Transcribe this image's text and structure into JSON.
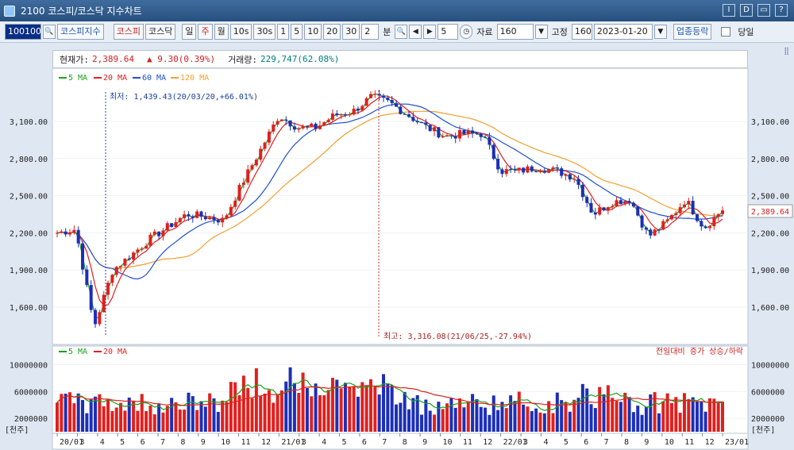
{
  "window": {
    "code": "2100",
    "title": "코스피/코스닥 지수차트",
    "buttons": [
      "I",
      "D",
      "▭",
      "?"
    ]
  },
  "toolbar": {
    "index_code": "100100",
    "index_name": "코스피지수",
    "market_kospi": "코스피",
    "market_kosdaq": "코스닥",
    "period_day": "일",
    "period_week": "주",
    "period_month": "월",
    "period_10s": "10s",
    "period_30s": "30s",
    "min_1": "1",
    "min_5": "5",
    "min_10": "10",
    "min_20": "20",
    "min_30": "30",
    "min_custom": "2",
    "min_label": "분",
    "step_value": "5",
    "data_label": "자료",
    "data_value": "160",
    "fixed_label": "고정",
    "fixed_value": "160",
    "date_value": "2023-01-20",
    "sector_button": "업종등락",
    "today_label": "당일"
  },
  "info": {
    "current_label": "현재가:",
    "current_value": "2,389.64",
    "change_value": "▲ 9.30(0.39%)",
    "volume_label": "거래량:",
    "volume_value": "229,747(62.08%)"
  },
  "legend": {
    "ma5": "5 MA",
    "ma20": "20 MA",
    "ma60": "60 MA",
    "ma120": "120 MA"
  },
  "vol_legend": {
    "ma5": "5 MA",
    "ma20": "20 MA",
    "note": "전일대비 증가 상승/하락"
  },
  "annotations": {
    "low": "최저: 1,439.43(20/03/20,+66.01%)",
    "high": "최고: 3,316.08(21/06/25,-27.94%)"
  },
  "price_axis": [
    "3,100.00",
    "2,800.00",
    "2,500.00",
    "2,200.00",
    "1,900.00",
    "1,600.00"
  ],
  "volume_axis": [
    "10000000",
    "6000000",
    "2000000"
  ],
  "volume_unit": "[천주]",
  "current_price_tag": "2,389.64",
  "x_axis": [
    "20/01",
    "3",
    "4",
    "5",
    "6",
    "7",
    "8",
    "9",
    "10",
    "11",
    "12",
    "21/01",
    "3",
    "4",
    "5",
    "6",
    "7",
    "8",
    "9",
    "10",
    "11",
    "12",
    "22/01",
    "3",
    "4",
    "5",
    "6",
    "7",
    "8",
    "9",
    "10",
    "11",
    "12",
    "23/01"
  ],
  "colors": {
    "up": "#e0201e",
    "down": "#1c2fb7",
    "ma5": "#1aa31a",
    "ma20": "#e02020",
    "ma60": "#2050d0",
    "ma120": "#f0a030"
  },
  "chart_data": {
    "type": "candlestick",
    "price_anchors": [
      {
        "date": "2020-01",
        "close": 2200
      },
      {
        "date": "2020-02",
        "close": 2230
      },
      {
        "date": "2020-03",
        "close": 1440
      },
      {
        "date": "2020-04",
        "close": 1900
      },
      {
        "date": "2020-05",
        "close": 2020
      },
      {
        "date": "2020-06",
        "close": 2150
      },
      {
        "date": "2020-07",
        "close": 2250
      },
      {
        "date": "2020-08",
        "close": 2350
      },
      {
        "date": "2020-09",
        "close": 2330
      },
      {
        "date": "2020-10",
        "close": 2300
      },
      {
        "date": "2020-11",
        "close": 2600
      },
      {
        "date": "2020-12",
        "close": 2870
      },
      {
        "date": "2021-01",
        "close": 3150
      },
      {
        "date": "2021-02",
        "close": 3050
      },
      {
        "date": "2021-03",
        "close": 3050
      },
      {
        "date": "2021-04",
        "close": 3150
      },
      {
        "date": "2021-05",
        "close": 3180
      },
      {
        "date": "2021-06",
        "close": 3300
      },
      {
        "date": "2021-07",
        "close": 3250
      },
      {
        "date": "2021-08",
        "close": 3150
      },
      {
        "date": "2021-09",
        "close": 3050
      },
      {
        "date": "2021-10",
        "close": 2980
      },
      {
        "date": "2021-11",
        "close": 3000
      },
      {
        "date": "2021-12",
        "close": 3000
      },
      {
        "date": "2022-01",
        "close": 2700
      },
      {
        "date": "2022-02",
        "close": 2700
      },
      {
        "date": "2022-03",
        "close": 2730
      },
      {
        "date": "2022-04",
        "close": 2700
      },
      {
        "date": "2022-05",
        "close": 2650
      },
      {
        "date": "2022-06",
        "close": 2350
      },
      {
        "date": "2022-07",
        "close": 2450
      },
      {
        "date": "2022-08",
        "close": 2470
      },
      {
        "date": "2022-09",
        "close": 2170
      },
      {
        "date": "2022-10",
        "close": 2290
      },
      {
        "date": "2022-11",
        "close": 2470
      },
      {
        "date": "2022-12",
        "close": 2240
      },
      {
        "date": "2023-01",
        "close": 2390
      }
    ],
    "y_range": [
      1350,
      3350
    ],
    "volume_range": [
      0,
      11000000
    ]
  }
}
